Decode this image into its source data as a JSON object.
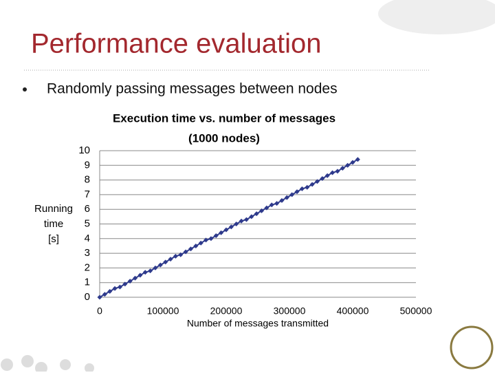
{
  "slide": {
    "title": "Performance evaluation",
    "bullet": "Randomly passing messages between nodes"
  },
  "chart_data": {
    "type": "line",
    "title": [
      "Execution time vs. number of messages",
      "(1000 nodes)"
    ],
    "x_label": "Number of messages transmitted",
    "y_label": [
      "Running",
      "time",
      "[s]"
    ],
    "x": [
      0,
      8000,
      16000,
      24000,
      32000,
      40000,
      48000,
      56000,
      64000,
      72000,
      80000,
      88000,
      96000,
      104000,
      112000,
      120000,
      128000,
      136000,
      144000,
      152000,
      160000,
      168000,
      176000,
      184000,
      192000,
      200000,
      208000,
      216000,
      224000,
      232000,
      240000,
      248000,
      256000,
      264000,
      272000,
      280000,
      288000,
      296000,
      304000,
      312000,
      320000,
      328000,
      336000,
      344000,
      352000,
      360000,
      368000,
      376000,
      384000,
      392000,
      400000,
      408000
    ],
    "series": [
      {
        "color": "#2e3a8c",
        "values": [
          0,
          0.2,
          0.4,
          0.6,
          0.7,
          0.9,
          1.1,
          1.3,
          1.5,
          1.7,
          1.8,
          2.0,
          2.2,
          2.4,
          2.6,
          2.8,
          2.9,
          3.1,
          3.3,
          3.5,
          3.7,
          3.9,
          4.0,
          4.2,
          4.4,
          4.6,
          4.8,
          5.0,
          5.2,
          5.3,
          5.5,
          5.7,
          5.9,
          6.1,
          6.3,
          6.4,
          6.6,
          6.8,
          7.0,
          7.2,
          7.4,
          7.5,
          7.7,
          7.9,
          8.1,
          8.3,
          8.5,
          8.6,
          8.8,
          9.0,
          9.2,
          9.4
        ]
      }
    ],
    "xlim": [
      0,
      500000
    ],
    "xticks": [
      0,
      100000,
      200000,
      300000,
      400000,
      500000
    ],
    "ylim": [
      0,
      10
    ],
    "yticks": [
      0,
      1,
      2,
      3,
      4,
      5,
      6,
      7,
      8,
      9,
      10
    ],
    "grid": true
  }
}
